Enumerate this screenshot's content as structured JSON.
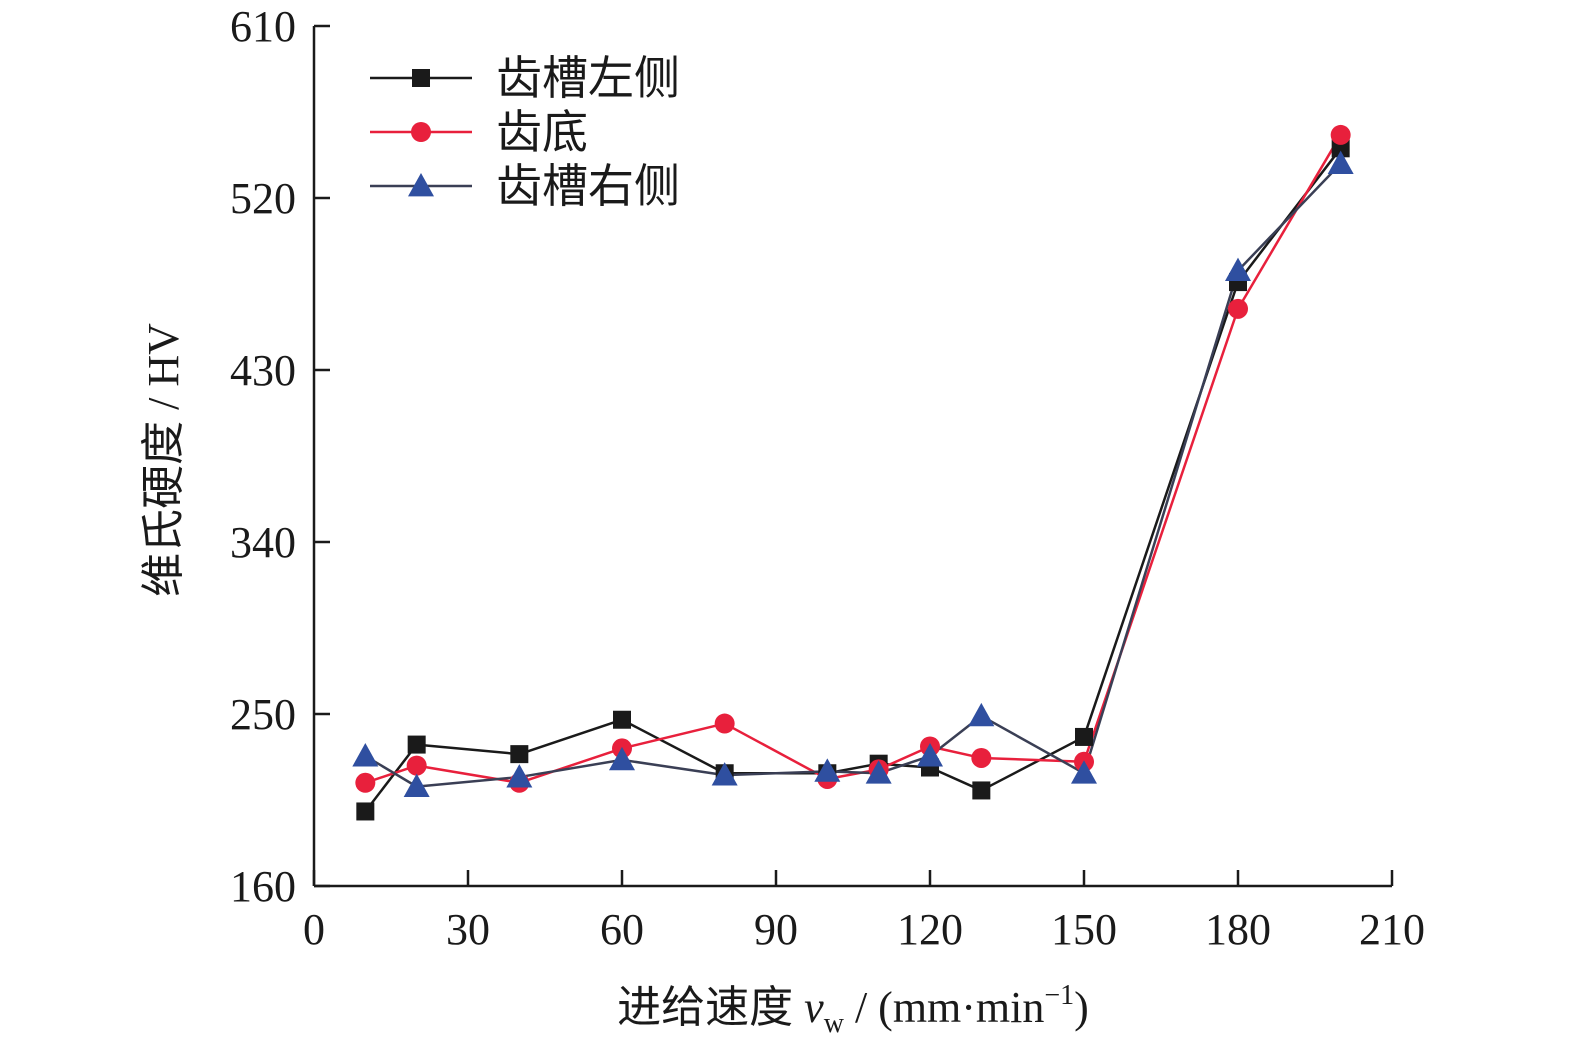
{
  "chart_data": {
    "type": "line",
    "title": "",
    "xlabel_main": "进给速度 ",
    "xlabel_var": "v",
    "xlabel_sub": "w",
    "xlabel_unit_open": " / (mm·min",
    "xlabel_sup": "−1",
    "xlabel_unit_close": ")",
    "ylabel": "维氏硬度 / HV",
    "xlim": [
      0,
      210
    ],
    "ylim": [
      160,
      610
    ],
    "xticks": [
      "0",
      "30",
      "60",
      "90",
      "120",
      "150",
      "180",
      "210"
    ],
    "yticks": [
      "160",
      "250",
      "340",
      "430",
      "520",
      "610"
    ],
    "grid": false,
    "legend_position": "top-left",
    "series": [
      {
        "name": "齿槽左侧",
        "marker": "square",
        "color": "#1a1a1a",
        "x": [
          10,
          20,
          40,
          60,
          80,
          100,
          110,
          120,
          130,
          150,
          180,
          200
        ],
        "y": [
          199,
          234,
          229,
          247,
          219,
          219,
          224,
          222,
          210,
          238,
          476,
          546
        ]
      },
      {
        "name": "齿底",
        "marker": "circle",
        "color": "#e8203c",
        "x": [
          10,
          20,
          40,
          60,
          80,
          100,
          110,
          120,
          130,
          150,
          180,
          200
        ],
        "y": [
          214,
          223,
          214,
          232,
          245,
          216,
          221,
          233,
          227,
          225,
          462,
          553
        ]
      },
      {
        "name": "齿槽右侧",
        "marker": "triangle",
        "color": "#2f4fa0",
        "x": [
          10,
          20,
          40,
          60,
          80,
          100,
          110,
          120,
          130,
          150,
          180,
          200
        ],
        "y": [
          228,
          212,
          217,
          226,
          218,
          220,
          219,
          228,
          249,
          219,
          482,
          538
        ]
      }
    ],
    "line_color": "#444444"
  }
}
